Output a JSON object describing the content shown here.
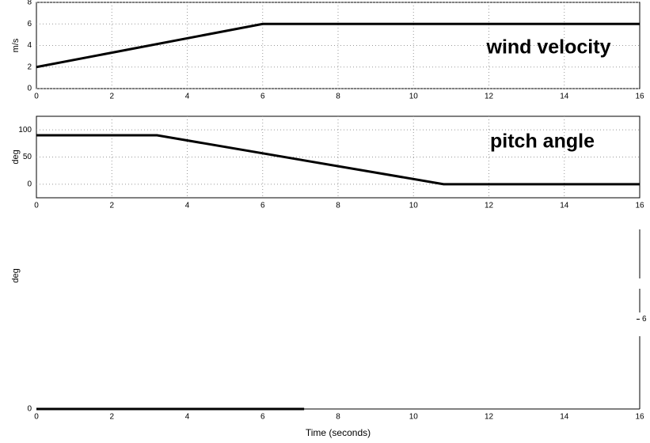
{
  "chart_data": [
    {
      "type": "line",
      "y_label": "m/s",
      "annotation": "wind velocity",
      "x": [
        0,
        6,
        16
      ],
      "values": [
        2,
        6,
        6
      ],
      "color": "#000000",
      "xlim": [
        0,
        16
      ],
      "xticks": [
        0,
        2,
        4,
        6,
        8,
        10,
        12,
        14,
        16
      ],
      "ylim": [
        0,
        8
      ],
      "yticks": [
        0,
        2,
        4,
        6,
        8
      ],
      "grid": true
    },
    {
      "type": "line",
      "y_label": "deg",
      "annotation": "pitch angle",
      "x": [
        0,
        3.2,
        10.8,
        16
      ],
      "values": [
        90,
        90,
        0,
        0
      ],
      "color": "#000000",
      "xlim": [
        0,
        16
      ],
      "xticks": [
        0,
        2,
        4,
        6,
        8,
        10,
        12,
        14,
        16
      ],
      "ylim": [
        -25,
        125
      ],
      "yticks": [
        0,
        50,
        100
      ],
      "grid": true
    },
    {
      "type": "line",
      "y_label": "deg",
      "x_label": "Time (seconds)",
      "x": [
        0,
        7.1
      ],
      "values": [
        0,
        0
      ],
      "color": "#000000",
      "xlim": [
        0,
        16
      ],
      "xticks": [
        0,
        2,
        4,
        6,
        8,
        10,
        12,
        14,
        16
      ],
      "ylim": [
        0,
        12
      ],
      "yticks": [
        0
      ],
      "y2lim": [
        0,
        12
      ],
      "y2ticks": [
        6
      ],
      "grid": false
    }
  ]
}
